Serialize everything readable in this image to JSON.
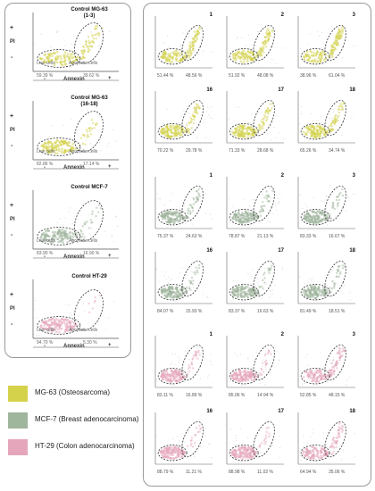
{
  "controls": [
    {
      "title": "Control MG-63 (1-3)",
      "line1": "Control MG-63",
      "line2": "(1-3)",
      "color": "#d4d24a",
      "live_pct": "59.39 %",
      "apop_pct": "39.62 %",
      "live_label": "Live cells",
      "apop_label": "Apoptotic cells",
      "xaxis": "Annexin",
      "yaxis": "PI"
    },
    {
      "title": "Control MG-63 (16-18)",
      "line1": "Control MG-63",
      "line2": "(16-18)",
      "color": "#d4d24a",
      "live_pct": "82.86 %",
      "apop_pct": "17.14 %",
      "live_label": "Live cells",
      "apop_label": "Apoptotic cells",
      "xaxis": "Annexin",
      "yaxis": "PI"
    },
    {
      "title": "Control MCF-7",
      "line1": "Control MCF-7",
      "line2": "",
      "color": "#9fb59c",
      "live_pct": "83.90 %",
      "apop_pct": "16.90 %",
      "live_label": "Live cells",
      "apop_label": "Apoptotic cells",
      "xaxis": "Annexin",
      "yaxis": "PI"
    },
    {
      "title": "Control HT-29",
      "line1": "Control HT-29",
      "line2": "",
      "color": "#e5a6bb",
      "live_pct": "94.70 %",
      "apop_pct": "5.30 %",
      "live_label": "Live cells",
      "apop_label": "Apoptotic cells",
      "xaxis": "Annexin",
      "yaxis": "PI"
    }
  ],
  "signs": {
    "plus": "+",
    "minus": "-"
  },
  "legend": [
    {
      "label": "MG-63 (Osteosarcoma)",
      "color": "#d4d24a"
    },
    {
      "label": "MCF-7 (Breast adenocarcinoma)",
      "color": "#9fb59c"
    },
    {
      "label": "HT-29 (Colon adenocarcinoma)",
      "color": "#e5a6bb"
    }
  ],
  "grid": [
    {
      "num": "1",
      "live": "51.44 %",
      "apop": "48.56 %",
      "color": "#d4d24a"
    },
    {
      "num": "2",
      "live": "51.92 %",
      "apop": "48.08 %",
      "color": "#d4d24a"
    },
    {
      "num": "3",
      "live": "38.96 %",
      "apop": "61.04 %",
      "color": "#d4d24a"
    },
    {
      "num": "16",
      "live": "70.22 %",
      "apop": "29.78 %",
      "color": "#d4d24a"
    },
    {
      "num": "17",
      "live": "71.33 %",
      "apop": "28.68 %",
      "color": "#d4d24a"
    },
    {
      "num": "18",
      "live": "65.26 %",
      "apop": "34.74 %",
      "color": "#d4d24a"
    },
    {
      "num": "1",
      "live": "75.37 %",
      "apop": "24.63 %",
      "color": "#9fb59c"
    },
    {
      "num": "2",
      "live": "78.87 %",
      "apop": "21.13 %",
      "color": "#9fb59c"
    },
    {
      "num": "3",
      "live": "83.33 %",
      "apop": "16.67 %",
      "color": "#9fb59c"
    },
    {
      "num": "16",
      "live": "84.07 %",
      "apop": "15.93 %",
      "color": "#9fb59c"
    },
    {
      "num": "17",
      "live": "83.37 %",
      "apop": "16.63 %",
      "color": "#9fb59c"
    },
    {
      "num": "18",
      "live": "81.49 %",
      "apop": "18.51 %",
      "color": "#9fb59c"
    },
    {
      "num": "1",
      "live": "83.11 %",
      "apop": "16.89 %",
      "color": "#e5a6bb"
    },
    {
      "num": "2",
      "live": "85.06 %",
      "apop": "14.94 %",
      "color": "#e5a6bb"
    },
    {
      "num": "3",
      "live": "52.85 %",
      "apop": "48.15 %",
      "color": "#e5a6bb"
    },
    {
      "num": "16",
      "live": "88.79 %",
      "apop": "11.21 %",
      "color": "#e5a6bb"
    },
    {
      "num": "17",
      "live": "88.98 %",
      "apop": "11.02 %",
      "color": "#e5a6bb"
    },
    {
      "num": "18",
      "live": "64.94 %",
      "apop": "35.06 %",
      "color": "#e5a6bb"
    }
  ]
}
